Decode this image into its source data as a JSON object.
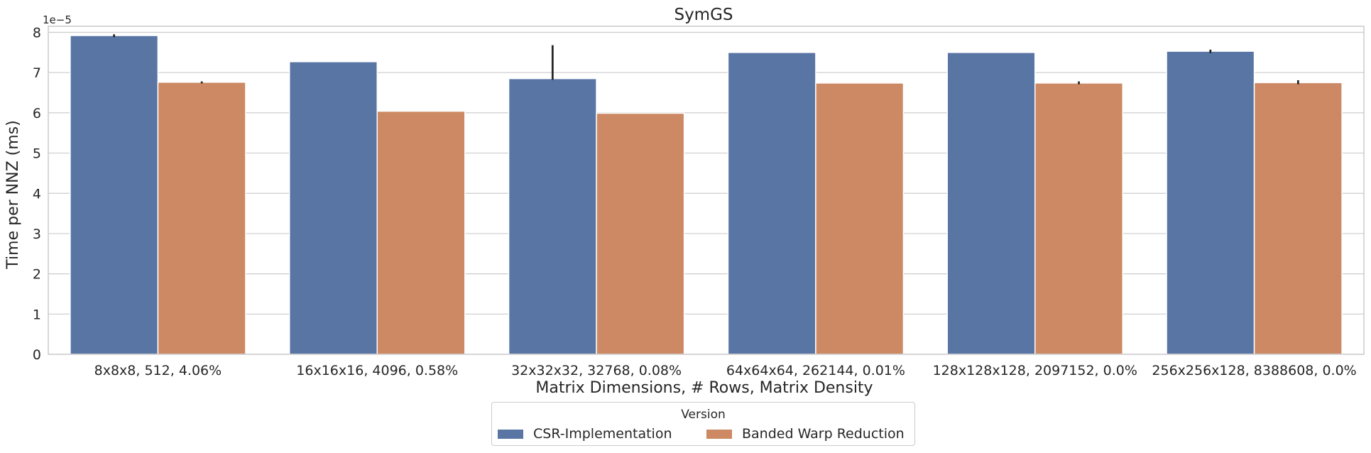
{
  "chart_data": {
    "type": "bar",
    "title": "SymGS",
    "xlabel": "Matrix Dimensions, # Rows, Matrix Density",
    "ylabel": "Time per NNZ (ms)",
    "y_scale_label": "1e−5",
    "y_multiplier": 1e-05,
    "ylim": [
      0,
      8.15
    ],
    "yticks": [
      0,
      1,
      2,
      3,
      4,
      5,
      6,
      7,
      8
    ],
    "grid": true,
    "legend_position": "bottom-center",
    "legend_title": "Version",
    "categories": [
      "8x8x8, 512, 4.06%",
      "16x16x16, 4096, 0.58%",
      "32x32x32, 32768, 0.08%",
      "64x64x64, 262144, 0.01%",
      "128x128x128, 2097152, 0.0%",
      "256x256x128, 8388608, 0.0%"
    ],
    "series": [
      {
        "name": "CSR-Implementation",
        "color": "#5975a4",
        "values": [
          7.92,
          7.27,
          6.85,
          7.5,
          7.5,
          7.53
        ],
        "error_low": [
          7.88,
          7.27,
          6.82,
          7.5,
          7.5,
          7.48
        ],
        "error_high": [
          7.95,
          7.27,
          7.68,
          7.5,
          7.5,
          7.57
        ]
      },
      {
        "name": "Banded Warp Reduction",
        "color": "#cc8963",
        "values": [
          6.76,
          6.04,
          5.99,
          6.74,
          6.74,
          6.75
        ],
        "error_low": [
          6.73,
          6.04,
          5.99,
          6.74,
          6.71,
          6.71
        ],
        "error_high": [
          6.78,
          6.04,
          5.99,
          6.74,
          6.78,
          6.81
        ]
      }
    ]
  }
}
